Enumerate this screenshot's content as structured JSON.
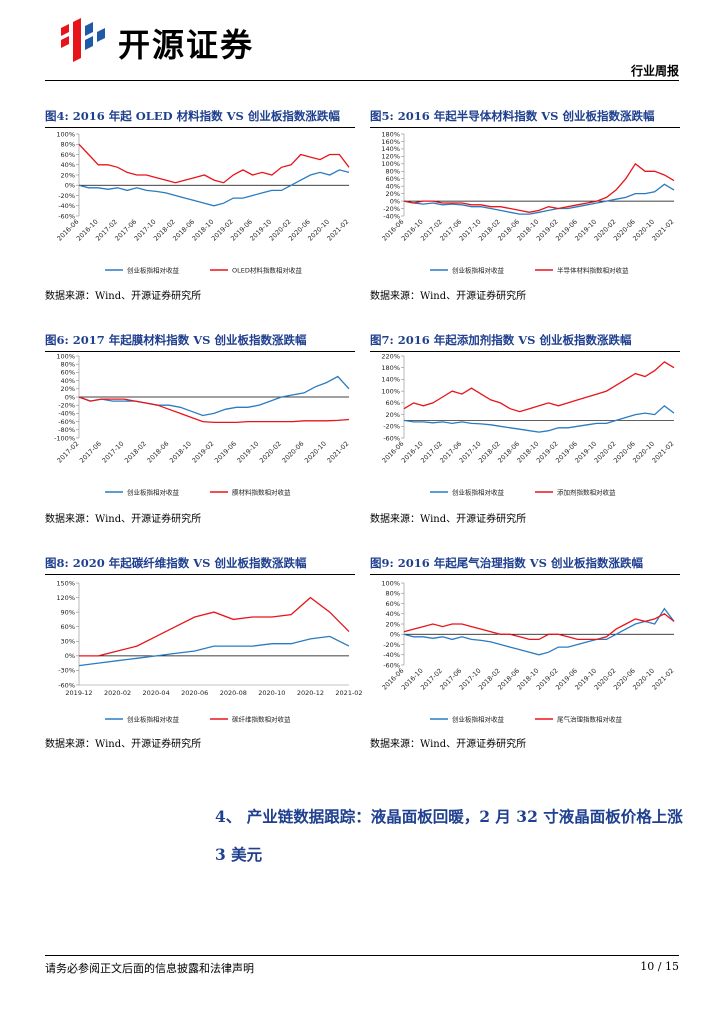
{
  "header": {
    "brand": "开源证券",
    "report_type": "行业周报"
  },
  "section": {
    "number": "4、",
    "title": "产业链数据跟踪：液晶面板回暖，2 月 32 寸液晶面板价格上涨 3 美元"
  },
  "footer": {
    "disclaimer": "请务必参阅正文后面的信息披露和法律声明",
    "page": "10 / 15"
  },
  "chart_data": [
    {
      "type": "line",
      "title": "图4:  2016 年起 OLED 材料指数 VS 创业板指数涨跌幅",
      "source": "数据来源：Wind、开源证券研究所",
      "categories": [
        "2016-06",
        null,
        "2016-10",
        null,
        "2017-02",
        null,
        "2017-06",
        null,
        "2017-10",
        null,
        "2018-02",
        null,
        "2018-06",
        null,
        "2018-10",
        null,
        "2019-02",
        null,
        "2019-06",
        null,
        "2019-10",
        null,
        "2020-02",
        null,
        "2020-06",
        null,
        "2020-10",
        null,
        "2021-02"
      ],
      "series": [
        {
          "name": "创业板指相对收益",
          "color": "#2a7bc0",
          "values": [
            0,
            -5,
            -5,
            -8,
            -5,
            -10,
            -5,
            -10,
            -12,
            -15,
            -20,
            -25,
            -30,
            -35,
            -40,
            -35,
            -25,
            -25,
            -20,
            -15,
            -10,
            -10,
            0,
            10,
            20,
            25,
            20,
            30,
            25
          ]
        },
        {
          "name": "OLED材料指数相对收益",
          "color": "#e8141b",
          "values": [
            80,
            60,
            40,
            40,
            35,
            25,
            20,
            20,
            15,
            10,
            5,
            10,
            15,
            20,
            10,
            5,
            20,
            30,
            20,
            25,
            20,
            35,
            40,
            60,
            55,
            50,
            60,
            60,
            35
          ]
        }
      ],
      "ylim": [
        -60,
        100
      ],
      "yticks": [
        {
          "value": -60,
          "label": "-60%"
        },
        {
          "value": -40,
          "label": "-40%"
        },
        {
          "value": -20,
          "label": "-20%"
        },
        {
          "value": 0,
          "label": "0%"
        },
        {
          "value": 20,
          "label": "20%"
        },
        {
          "value": 40,
          "label": "40%"
        },
        {
          "value": 60,
          "label": "60%"
        },
        {
          "value": 80,
          "label": "80%"
        },
        {
          "value": 100,
          "label": "100%"
        }
      ]
    },
    {
      "type": "line",
      "title": "图5:  2016 年起半导体材料指数 VS 创业板指数涨跌幅",
      "source": "数据来源：Wind、开源证券研究所",
      "categories": [
        "2016-06",
        null,
        "2016-10",
        null,
        "2017-02",
        null,
        "2017-06",
        null,
        "2017-10",
        null,
        "2018-02",
        null,
        "2018-06",
        null,
        "2018-10",
        null,
        "2019-02",
        null,
        "2019-06",
        null,
        "2019-10",
        null,
        "2020-02",
        null,
        "2020-06",
        null,
        "2020-10",
        null,
        "2021-02"
      ],
      "series": [
        {
          "name": "创业板指相对收益",
          "color": "#2a7bc0",
          "values": [
            0,
            -5,
            -8,
            -5,
            -10,
            -8,
            -10,
            -15,
            -15,
            -20,
            -25,
            -30,
            -35,
            -35,
            -30,
            -25,
            -20,
            -20,
            -15,
            -10,
            -5,
            0,
            5,
            10,
            20,
            20,
            25,
            45,
            30
          ]
        },
        {
          "name": "半导体材料指数相对收益",
          "color": "#e8141b",
          "values": [
            0,
            -5,
            0,
            0,
            -5,
            -5,
            -5,
            -10,
            -10,
            -15,
            -15,
            -20,
            -25,
            -30,
            -25,
            -15,
            -20,
            -15,
            -10,
            -5,
            0,
            10,
            30,
            60,
            100,
            80,
            80,
            70,
            55
          ]
        }
      ],
      "ylim": [
        -40,
        180
      ],
      "yticks": [
        {
          "value": -40,
          "label": "-40%"
        },
        {
          "value": -20,
          "label": "-20%"
        },
        {
          "value": 0,
          "label": "0%"
        },
        {
          "value": 20,
          "label": "20%"
        },
        {
          "value": 40,
          "label": "40%"
        },
        {
          "value": 60,
          "label": "60%"
        },
        {
          "value": 80,
          "label": "80%"
        },
        {
          "value": 100,
          "label": "100%"
        },
        {
          "value": 120,
          "label": "120%"
        },
        {
          "value": 140,
          "label": "140%"
        },
        {
          "value": 160,
          "label": "160%"
        },
        {
          "value": 180,
          "label": "180%"
        }
      ]
    },
    {
      "type": "line",
      "title": "图6:  2017 年起膜材料指数 VS 创业板指数涨跌幅",
      "source": "数据来源：Wind、开源证券研究所",
      "categories": [
        "2017-02",
        null,
        "2017-06",
        null,
        "2017-10",
        null,
        "2018-02",
        null,
        "2018-06",
        null,
        "2018-10",
        null,
        "2019-02",
        null,
        "2019-06",
        null,
        "2019-10",
        null,
        "2020-02",
        null,
        "2020-06",
        null,
        "2020-10",
        null,
        "2021-02"
      ],
      "series": [
        {
          "name": "创业板指相对收益",
          "color": "#2a7bc0",
          "values": [
            0,
            -10,
            -5,
            -10,
            -10,
            -10,
            -15,
            -20,
            -20,
            -25,
            -35,
            -45,
            -40,
            -30,
            -25,
            -25,
            -20,
            -10,
            0,
            5,
            10,
            25,
            35,
            50,
            20
          ]
        },
        {
          "name": "膜材料指数相对收益",
          "color": "#e8141b",
          "values": [
            0,
            -10,
            -5,
            -5,
            -5,
            -10,
            -15,
            -20,
            -30,
            -40,
            -50,
            -60,
            -62,
            -62,
            -62,
            -60,
            -60,
            -60,
            -60,
            -60,
            -58,
            -58,
            -58,
            -57,
            -55
          ]
        }
      ],
      "ylim": [
        -100,
        100
      ],
      "yticks": [
        {
          "value": -100,
          "label": "-100%"
        },
        {
          "value": -80,
          "label": "-80%"
        },
        {
          "value": -60,
          "label": "-60%"
        },
        {
          "value": -40,
          "label": "-40%"
        },
        {
          "value": -20,
          "label": "-20%"
        },
        {
          "value": 0,
          "label": "0%"
        },
        {
          "value": 20,
          "label": "20%"
        },
        {
          "value": 40,
          "label": "40%"
        },
        {
          "value": 60,
          "label": "60%"
        },
        {
          "value": 80,
          "label": "80%"
        },
        {
          "value": 100,
          "label": "100%"
        }
      ]
    },
    {
      "type": "line",
      "title": "图7:  2016 年起添加剂指数 VS 创业板指数涨跌幅",
      "source": "数据来源：Wind、开源证券研究所",
      "categories": [
        "2016-06",
        null,
        "2016-10",
        null,
        "2017-02",
        null,
        "2017-06",
        null,
        "2017-10",
        null,
        "2018-02",
        null,
        "2018-06",
        null,
        "2018-10",
        null,
        "2019-02",
        null,
        "2019-06",
        null,
        "2019-10",
        null,
        "2020-02",
        null,
        "2020-06",
        null,
        "2020-10",
        null,
        "2021-02"
      ],
      "series": [
        {
          "name": "创业板指相对收益",
          "color": "#2a7bc0",
          "values": [
            0,
            -5,
            -5,
            -8,
            -5,
            -10,
            -5,
            -10,
            -12,
            -15,
            -20,
            -25,
            -30,
            -35,
            -40,
            -35,
            -25,
            -25,
            -20,
            -15,
            -10,
            -10,
            0,
            10,
            20,
            25,
            20,
            50,
            25
          ]
        },
        {
          "name": "添加剂指数相对收益",
          "color": "#e8141b",
          "values": [
            40,
            60,
            50,
            60,
            80,
            100,
            90,
            110,
            90,
            70,
            60,
            40,
            30,
            40,
            50,
            60,
            50,
            60,
            70,
            80,
            90,
            100,
            120,
            140,
            160,
            150,
            170,
            200,
            180
          ]
        }
      ],
      "ylim": [
        -60,
        220
      ],
      "yticks": [
        {
          "value": -60,
          "label": "-60%"
        },
        {
          "value": -20,
          "label": "-20%"
        },
        {
          "value": 20,
          "label": "20%"
        },
        {
          "value": 60,
          "label": "60%"
        },
        {
          "value": 100,
          "label": "100%"
        },
        {
          "value": 140,
          "label": "140%"
        },
        {
          "value": 180,
          "label": "180%"
        },
        {
          "value": 220,
          "label": "220%"
        }
      ]
    },
    {
      "type": "line",
      "title": "图8:  2020 年起碳纤维指数 VS 创业板指数涨跌幅",
      "source": "数据来源：Wind、开源证券研究所",
      "categories": [
        "2019-12",
        null,
        "2020-02",
        null,
        "2020-04",
        null,
        "2020-06",
        null,
        "2020-08",
        null,
        "2020-10",
        null,
        "2020-12",
        null,
        "2021-02"
      ],
      "series": [
        {
          "name": "创业板指相对收益",
          "color": "#2a7bc0",
          "values": [
            -20,
            -15,
            -10,
            -5,
            0,
            5,
            10,
            20,
            20,
            20,
            25,
            25,
            35,
            40,
            20
          ]
        },
        {
          "name": "碳纤维指数相对收益",
          "color": "#e8141b",
          "values": [
            0,
            0,
            10,
            20,
            40,
            60,
            80,
            90,
            75,
            80,
            80,
            85,
            120,
            90,
            50
          ]
        }
      ],
      "ylim": [
        -60,
        150
      ],
      "yticks": [
        {
          "value": -60,
          "label": "-60%"
        },
        {
          "value": -30,
          "label": "-30%"
        },
        {
          "value": 0,
          "label": "0%"
        },
        {
          "value": 30,
          "label": "30%"
        },
        {
          "value": 60,
          "label": "60%"
        },
        {
          "value": 90,
          "label": "90%"
        },
        {
          "value": 120,
          "label": "120%"
        },
        {
          "value": 150,
          "label": "150%"
        }
      ]
    },
    {
      "type": "line",
      "title": "图9:  2016 年起尾气治理指数 VS 创业板指数涨跌幅",
      "source": "数据来源：Wind、开源证券研究所",
      "categories": [
        "2016-06",
        null,
        "2016-10",
        null,
        "2017-02",
        null,
        "2017-06",
        null,
        "2017-10",
        null,
        "2018-02",
        null,
        "2018-06",
        null,
        "2018-10",
        null,
        "2019-02",
        null,
        "2019-06",
        null,
        "2019-10",
        null,
        "2020-02",
        null,
        "2020-06",
        null,
        "2020-10",
        null,
        "2021-02"
      ],
      "series": [
        {
          "name": "创业板指相对收益",
          "color": "#2a7bc0",
          "values": [
            0,
            -5,
            -5,
            -8,
            -5,
            -10,
            -5,
            -10,
            -12,
            -15,
            -20,
            -25,
            -30,
            -35,
            -40,
            -35,
            -25,
            -25,
            -20,
            -15,
            -10,
            -10,
            0,
            10,
            20,
            25,
            20,
            50,
            25
          ]
        },
        {
          "name": "尾气治理指数相对收益",
          "color": "#e8141b",
          "values": [
            5,
            10,
            15,
            20,
            15,
            20,
            20,
            15,
            10,
            5,
            0,
            0,
            -5,
            -10,
            -10,
            0,
            0,
            -5,
            -10,
            -10,
            -10,
            -5,
            10,
            20,
            30,
            25,
            30,
            40,
            25
          ]
        }
      ],
      "ylim": [
        -60,
        100
      ],
      "yticks": [
        {
          "value": -60,
          "label": "-60%"
        },
        {
          "value": -40,
          "label": "-40%"
        },
        {
          "value": -20,
          "label": "-20%"
        },
        {
          "value": 0,
          "label": "0%"
        },
        {
          "value": 20,
          "label": "20%"
        },
        {
          "value": 40,
          "label": "40%"
        },
        {
          "value": 60,
          "label": "60%"
        },
        {
          "value": 80,
          "label": "80%"
        },
        {
          "value": 100,
          "label": "100%"
        }
      ]
    }
  ]
}
